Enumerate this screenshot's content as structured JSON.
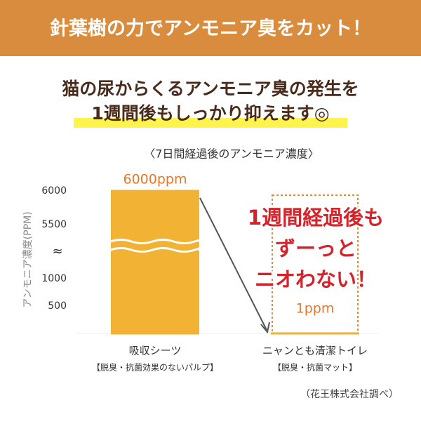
{
  "header": {
    "title": "針葉樹の力でアンモニア臭をカット！"
  },
  "headline": {
    "lines": [
      "猫の尿からくるアンモニア臭の発生を",
      "1週間後もしっかり抑えます◎"
    ]
  },
  "chart_data": {
    "type": "bar",
    "title": "〈7日間経過後のアンモニア濃度〉",
    "y_label": "アンモニア濃度(PPM)",
    "categories": [
      "吸収シーツ",
      "ニャンとも清潔トイレ"
    ],
    "category_notes": [
      "【脱臭・抗菌効果のないパルプ】",
      "【脱臭・抗菌マット】"
    ],
    "values": [
      6000,
      1
    ],
    "value_labels": [
      "6000ppm",
      "1ppm"
    ],
    "color": "#f2b233",
    "ylim": [
      0,
      6000
    ],
    "ybreak": [
      1000,
      5500
    ],
    "break_label": "≈",
    "yticks": [
      500,
      1000,
      5500,
      6000
    ],
    "annotation": {
      "lines": [
        "1週間経過後も",
        "ずーっと",
        "ニオわない！"
      ]
    }
  },
  "source": "（花王株式会社調べ）"
}
